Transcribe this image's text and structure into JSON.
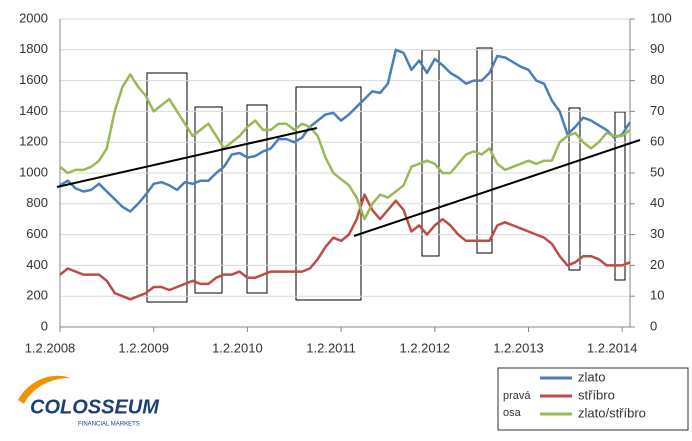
{
  "chart_data": {
    "type": "line",
    "categories": [
      "1.2.2008",
      null,
      null,
      null,
      null,
      null,
      null,
      null,
      null,
      null,
      null,
      null,
      "1.2.2009",
      null,
      null,
      null,
      null,
      null,
      null,
      null,
      null,
      null,
      null,
      null,
      "1.2.2010",
      null,
      null,
      null,
      null,
      null,
      null,
      null,
      null,
      null,
      null,
      null,
      "1.2.2011",
      null,
      null,
      null,
      null,
      null,
      null,
      null,
      null,
      null,
      null,
      null,
      "1.2.2012",
      null,
      null,
      null,
      null,
      null,
      null,
      null,
      null,
      null,
      null,
      null,
      "1.2.2013",
      null,
      null,
      null,
      null,
      null,
      null,
      null,
      null,
      null,
      null,
      null,
      "1.2.2014",
      null
    ],
    "ylim": [
      0,
      2000
    ],
    "yticks": [
      0,
      200,
      400,
      600,
      800,
      1000,
      1200,
      1400,
      1600,
      1800,
      2000
    ],
    "y2lim": [
      0,
      100
    ],
    "y2ticks": [
      0,
      10,
      20,
      30,
      40,
      50,
      60,
      70,
      80,
      90,
      100
    ],
    "series": [
      {
        "name": "zlato",
        "color": "#4a7ebb",
        "values": [
          920,
          950,
          900,
          880,
          890,
          930,
          880,
          830,
          780,
          750,
          800,
          860,
          930,
          940,
          920,
          890,
          940,
          930,
          950,
          950,
          1000,
          1040,
          1120,
          1130,
          1100,
          1110,
          1140,
          1160,
          1220,
          1220,
          1200,
          1230,
          1300,
          1340,
          1380,
          1390,
          1340,
          1380,
          1430,
          1480,
          1530,
          1520,
          1580,
          1800,
          1780,
          1670,
          1730,
          1650,
          1740,
          1700,
          1650,
          1620,
          1580,
          1600,
          1600,
          1650,
          1760,
          1750,
          1720,
          1690,
          1670,
          1600,
          1580,
          1470,
          1400,
          1250,
          1300,
          1360,
          1340,
          1310,
          1280,
          1230,
          1250,
          1330
        ]
      },
      {
        "name": "stříbro",
        "color": "#be4b48",
        "axis": "y2",
        "values": [
          17,
          19,
          18,
          17,
          17,
          17,
          15,
          11,
          10,
          9,
          10,
          11,
          13,
          13,
          12,
          13,
          14,
          15,
          14,
          14,
          16,
          17,
          17,
          18,
          16,
          16,
          17,
          18,
          18,
          18,
          18,
          18,
          19,
          22,
          26,
          29,
          28,
          30,
          35,
          43,
          38,
          35,
          38,
          41,
          38,
          31,
          33,
          30,
          33,
          35,
          33,
          30,
          28,
          28,
          28,
          28,
          33,
          34,
          33,
          32,
          31,
          30,
          29,
          27,
          23,
          20,
          21,
          23,
          23,
          22,
          20,
          20,
          20,
          21
        ]
      },
      {
        "name": "zlato/stříbro",
        "color": "#98b954",
        "axis": "y2",
        "values": [
          52,
          50,
          51,
          51,
          52,
          54,
          58,
          70,
          78,
          82,
          78,
          75,
          70,
          72,
          74,
          70,
          66,
          62,
          64,
          66,
          62,
          58,
          60,
          62,
          65,
          67,
          64,
          64,
          66,
          66,
          64,
          66,
          65,
          62,
          55,
          50,
          48,
          46,
          42,
          35,
          40,
          43,
          42,
          44,
          46,
          52,
          53,
          54,
          53,
          50,
          50,
          53,
          56,
          57,
          56,
          58,
          53,
          51,
          52,
          53,
          54,
          53,
          54,
          54,
          60,
          62,
          63,
          60,
          58,
          60,
          63,
          62,
          62,
          64
        ]
      }
    ],
    "legend_note": [
      "pravá",
      "osa"
    ],
    "logo": {
      "name": "COLOSSEUM",
      "tagline": "FINANCIAL MARKETS"
    }
  }
}
